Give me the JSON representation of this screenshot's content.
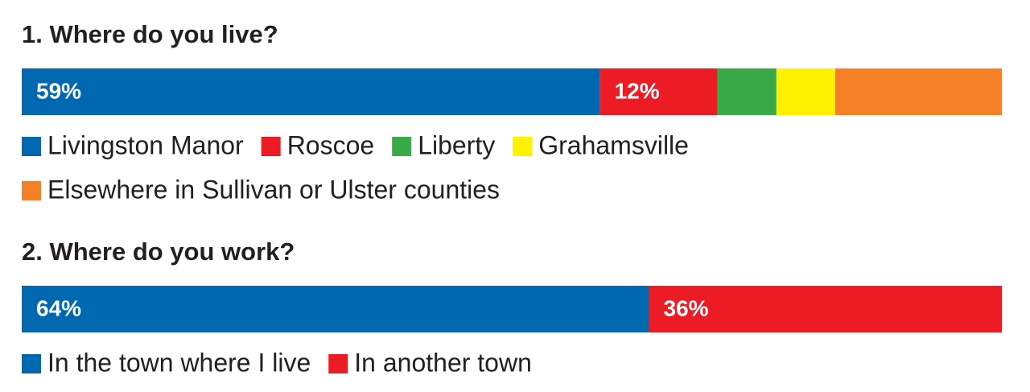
{
  "chart_data": [
    {
      "type": "stacked-bar",
      "title": "1. Where do you live?",
      "xlim": [
        0,
        100
      ],
      "series": [
        {
          "name": "Livingston Manor",
          "color": "#0067b1",
          "values": [
            59
          ],
          "value_labels": [
            "59%"
          ]
        },
        {
          "name": "Roscoe",
          "color": "#ed1c24",
          "values": [
            12
          ],
          "value_labels": [
            "12%"
          ]
        },
        {
          "name": "Liberty",
          "color": "#3aaa48",
          "values": [
            6
          ]
        },
        {
          "name": "Grahamsville",
          "color": "#fff200",
          "values": [
            6
          ]
        },
        {
          "name": "Elsewhere in Sullivan or Ulster counties",
          "color": "#f58025",
          "values": [
            17
          ]
        }
      ]
    },
    {
      "type": "stacked-bar",
      "title": "2. Where do you work?",
      "xlim": [
        0,
        100
      ],
      "series": [
        {
          "name": "In the town where I live",
          "color": "#0067b1",
          "values": [
            64
          ],
          "value_labels": [
            "64%"
          ]
        },
        {
          "name": "In another town",
          "color": "#ed1c24",
          "values": [
            36
          ],
          "value_labels": [
            "36%"
          ]
        }
      ]
    }
  ]
}
